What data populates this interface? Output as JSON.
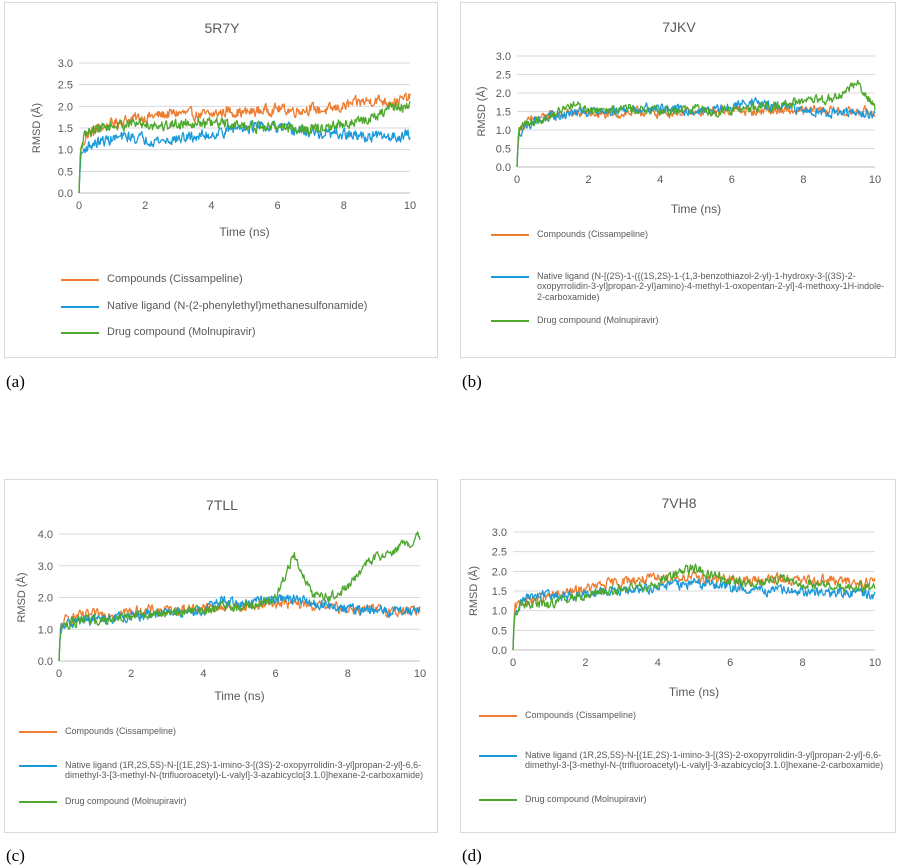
{
  "chart_data": [
    {
      "type": "line",
      "panel_label": "(a)",
      "title": "5R7Y",
      "xlabel": "Time (ns)",
      "ylabel": "RMSD (Å)",
      "xlim": [
        0,
        10
      ],
      "ylim": [
        0,
        3.0
      ],
      "xticks": [
        "0",
        "2",
        "4",
        "6",
        "8",
        "10"
      ],
      "yticks": [
        "0.0",
        "0.5",
        "1.0",
        "1.5",
        "2.0",
        "2.5",
        "3.0"
      ],
      "x": [
        0,
        0.05,
        0.2,
        0.5,
        1,
        1.5,
        2,
        2.5,
        3,
        3.5,
        4,
        4.5,
        5,
        5.5,
        6,
        6.5,
        7,
        7.5,
        8,
        8.5,
        9,
        9.5,
        10
      ],
      "series": [
        {
          "name": "Compounds (Cissampeline)",
          "color": "#ED7D31",
          "values": [
            0,
            1.0,
            1.3,
            1.45,
            1.6,
            1.7,
            1.75,
            1.8,
            1.85,
            1.8,
            1.8,
            1.9,
            1.85,
            1.9,
            1.95,
            1.9,
            1.95,
            1.9,
            2.0,
            2.1,
            2.15,
            2.1,
            2.2
          ]
        },
        {
          "name": "Native ligand (N-(2-phenylethyl)methanesulfonamide)",
          "color": "#1B9ADB",
          "values": [
            0,
            0.85,
            1.05,
            1.15,
            1.25,
            1.3,
            1.25,
            1.2,
            1.25,
            1.3,
            1.35,
            1.45,
            1.55,
            1.5,
            1.5,
            1.45,
            1.4,
            1.35,
            1.35,
            1.3,
            1.3,
            1.3,
            1.35
          ]
        },
        {
          "name": "Drug compound (Molnupiravir)",
          "color": "#4EA72E",
          "values": [
            0,
            1.0,
            1.35,
            1.5,
            1.55,
            1.6,
            1.6,
            1.55,
            1.6,
            1.65,
            1.6,
            1.6,
            1.55,
            1.5,
            1.55,
            1.5,
            1.45,
            1.5,
            1.6,
            1.65,
            1.75,
            2.0,
            2.0
          ]
        }
      ]
    },
    {
      "type": "line",
      "panel_label": "(b)",
      "title": "7JKV",
      "xlabel": "Time (ns)",
      "ylabel": "RMSD (Å)",
      "xlim": [
        0,
        10
      ],
      "ylim": [
        0,
        3.0
      ],
      "xticks": [
        "0",
        "2",
        "4",
        "6",
        "8",
        "10"
      ],
      "yticks": [
        "0.0",
        "0.5",
        "1.0",
        "1.5",
        "2.0",
        "2.5",
        "3.0"
      ],
      "x": [
        0,
        0.05,
        0.2,
        0.5,
        1,
        1.5,
        2,
        2.5,
        3,
        3.5,
        4,
        4.5,
        5,
        5.5,
        6,
        6.5,
        7,
        7.5,
        8,
        8.5,
        9,
        9.5,
        10
      ],
      "series": [
        {
          "name": "Compounds (Cissampeline)",
          "color": "#ED7D31",
          "values": [
            0,
            0.95,
            1.15,
            1.3,
            1.4,
            1.45,
            1.45,
            1.4,
            1.45,
            1.5,
            1.45,
            1.5,
            1.45,
            1.5,
            1.55,
            1.5,
            1.55,
            1.5,
            1.5,
            1.55,
            1.5,
            1.5,
            1.5
          ]
        },
        {
          "name": "Native ligand (N-[(2S)-1-({(1S,2S)-1-(1,3-benzothiazol-2-yl)-1-hydroxy-3-[(3S)-2-oxopyrrolidin-3-yl]propan-2-yl}amino)-4-methyl-1-oxopentan-2-yl]-4-methoxy-1H-indole-2-carboxamide)",
          "color": "#1B9ADB",
          "values": [
            0,
            0.9,
            1.1,
            1.25,
            1.35,
            1.45,
            1.5,
            1.55,
            1.55,
            1.6,
            1.6,
            1.55,
            1.5,
            1.55,
            1.6,
            1.8,
            1.65,
            1.6,
            1.55,
            1.5,
            1.45,
            1.45,
            1.4
          ]
        },
        {
          "name": "Drug compound (Molnupiravir)",
          "color": "#4EA72E",
          "values": [
            0,
            1.0,
            1.15,
            1.25,
            1.4,
            1.7,
            1.55,
            1.6,
            1.6,
            1.55,
            1.5,
            1.55,
            1.6,
            1.5,
            1.55,
            1.6,
            1.65,
            1.7,
            1.75,
            1.8,
            1.9,
            2.3,
            1.6
          ]
        }
      ]
    },
    {
      "type": "line",
      "panel_label": "(c)",
      "title": "7TLL",
      "xlabel": "Time (ns)",
      "ylabel": "RMSD (Å)",
      "xlim": [
        0,
        10
      ],
      "ylim": [
        0,
        4.0
      ],
      "xticks": [
        "0",
        "2",
        "4",
        "6",
        "8",
        "10"
      ],
      "yticks": [
        "0.0",
        "1.0",
        "2.0",
        "3.0",
        "4.0"
      ],
      "x": [
        0,
        0.05,
        0.2,
        0.5,
        1,
        1.5,
        2,
        2.5,
        3,
        3.5,
        4,
        4.5,
        5,
        5.5,
        6,
        6.5,
        7,
        7.5,
        8,
        8.5,
        9,
        9.5,
        10
      ],
      "series": [
        {
          "name": "Compounds (Cissampeline)",
          "color": "#ED7D31",
          "values": [
            0,
            1.1,
            1.3,
            1.4,
            1.45,
            1.5,
            1.55,
            1.6,
            1.6,
            1.65,
            1.65,
            1.7,
            1.7,
            1.75,
            1.85,
            1.8,
            1.75,
            1.7,
            1.65,
            1.6,
            1.6,
            1.55,
            1.6
          ]
        },
        {
          "name": "Native ligand (1R,2S,5S)-N-[(1E,2S)-1-imino-3-[(3S)-2-oxopyrrolidin-3-yl]propan-2-yl]-6,6-dimethyl-3-[3-methyl-N-(trifluoroacetyl)-L-valyl]-3-azabicyclo[3.1.0]hexane-2-carboxamide)",
          "color": "#1B9ADB",
          "values": [
            0,
            1.0,
            1.15,
            1.25,
            1.3,
            1.35,
            1.4,
            1.45,
            1.5,
            1.55,
            1.6,
            1.9,
            1.8,
            1.85,
            2.0,
            1.95,
            1.8,
            1.75,
            1.65,
            1.6,
            1.55,
            1.6,
            1.65
          ]
        },
        {
          "name": "Drug compound (Molnupiravir)",
          "color": "#4EA72E",
          "values": [
            0,
            1.0,
            1.15,
            1.25,
            1.3,
            1.35,
            1.4,
            1.45,
            1.5,
            1.55,
            1.6,
            1.7,
            1.75,
            1.8,
            2.0,
            3.4,
            2.1,
            2.0,
            2.3,
            3.1,
            3.4,
            3.6,
            3.9
          ]
        }
      ]
    },
    {
      "type": "line",
      "panel_label": "(d)",
      "title": "7VH8",
      "xlabel": "Time (ns)",
      "ylabel": "RMSD (Å)",
      "xlim": [
        0,
        10
      ],
      "ylim": [
        0,
        3.0
      ],
      "xticks": [
        "0",
        "2",
        "4",
        "6",
        "8",
        "10"
      ],
      "yticks": [
        "0.0",
        "0.5",
        "1.0",
        "1.5",
        "2.0",
        "2.5",
        "3.0"
      ],
      "x": [
        0,
        0.05,
        0.2,
        0.5,
        1,
        1.5,
        2,
        2.5,
        3,
        3.5,
        4,
        4.5,
        5,
        5.5,
        6,
        6.5,
        7,
        7.5,
        8,
        8.5,
        9,
        9.5,
        10
      ],
      "series": [
        {
          "name": "Compounds (Cissampeline)",
          "color": "#ED7D31",
          "values": [
            0,
            1.05,
            1.2,
            1.3,
            1.35,
            1.45,
            1.55,
            1.65,
            1.75,
            1.8,
            1.8,
            1.85,
            1.85,
            1.8,
            1.8,
            1.75,
            1.8,
            1.8,
            1.75,
            1.8,
            1.75,
            1.7,
            1.75
          ]
        },
        {
          "name": "Native ligand (1R,2S,5S)-N-[(1E,2S)-1-imino-3-[(3S)-2-oxopyrrolidin-3-yl]propan-2-yl]-6,6-dimethyl-3-[3-methyl-N-(trifluoroacetyl)-L-valyl]-3-azabicyclo[3.1.0]hexane-2-carboxamide)",
          "color": "#1B9ADB",
          "values": [
            0,
            1.0,
            1.2,
            1.35,
            1.4,
            1.35,
            1.45,
            1.5,
            1.5,
            1.55,
            1.6,
            1.65,
            1.7,
            1.65,
            1.6,
            1.55,
            1.5,
            1.5,
            1.5,
            1.45,
            1.45,
            1.45,
            1.4
          ]
        },
        {
          "name": "Drug compound (Molnupiravir)",
          "color": "#4EA72E",
          "values": [
            0,
            0.95,
            1.1,
            1.2,
            1.15,
            1.3,
            1.4,
            1.5,
            1.55,
            1.6,
            1.7,
            1.9,
            2.1,
            1.9,
            1.75,
            1.7,
            1.75,
            1.8,
            1.7,
            1.65,
            1.6,
            1.6,
            1.6
          ]
        }
      ]
    }
  ]
}
